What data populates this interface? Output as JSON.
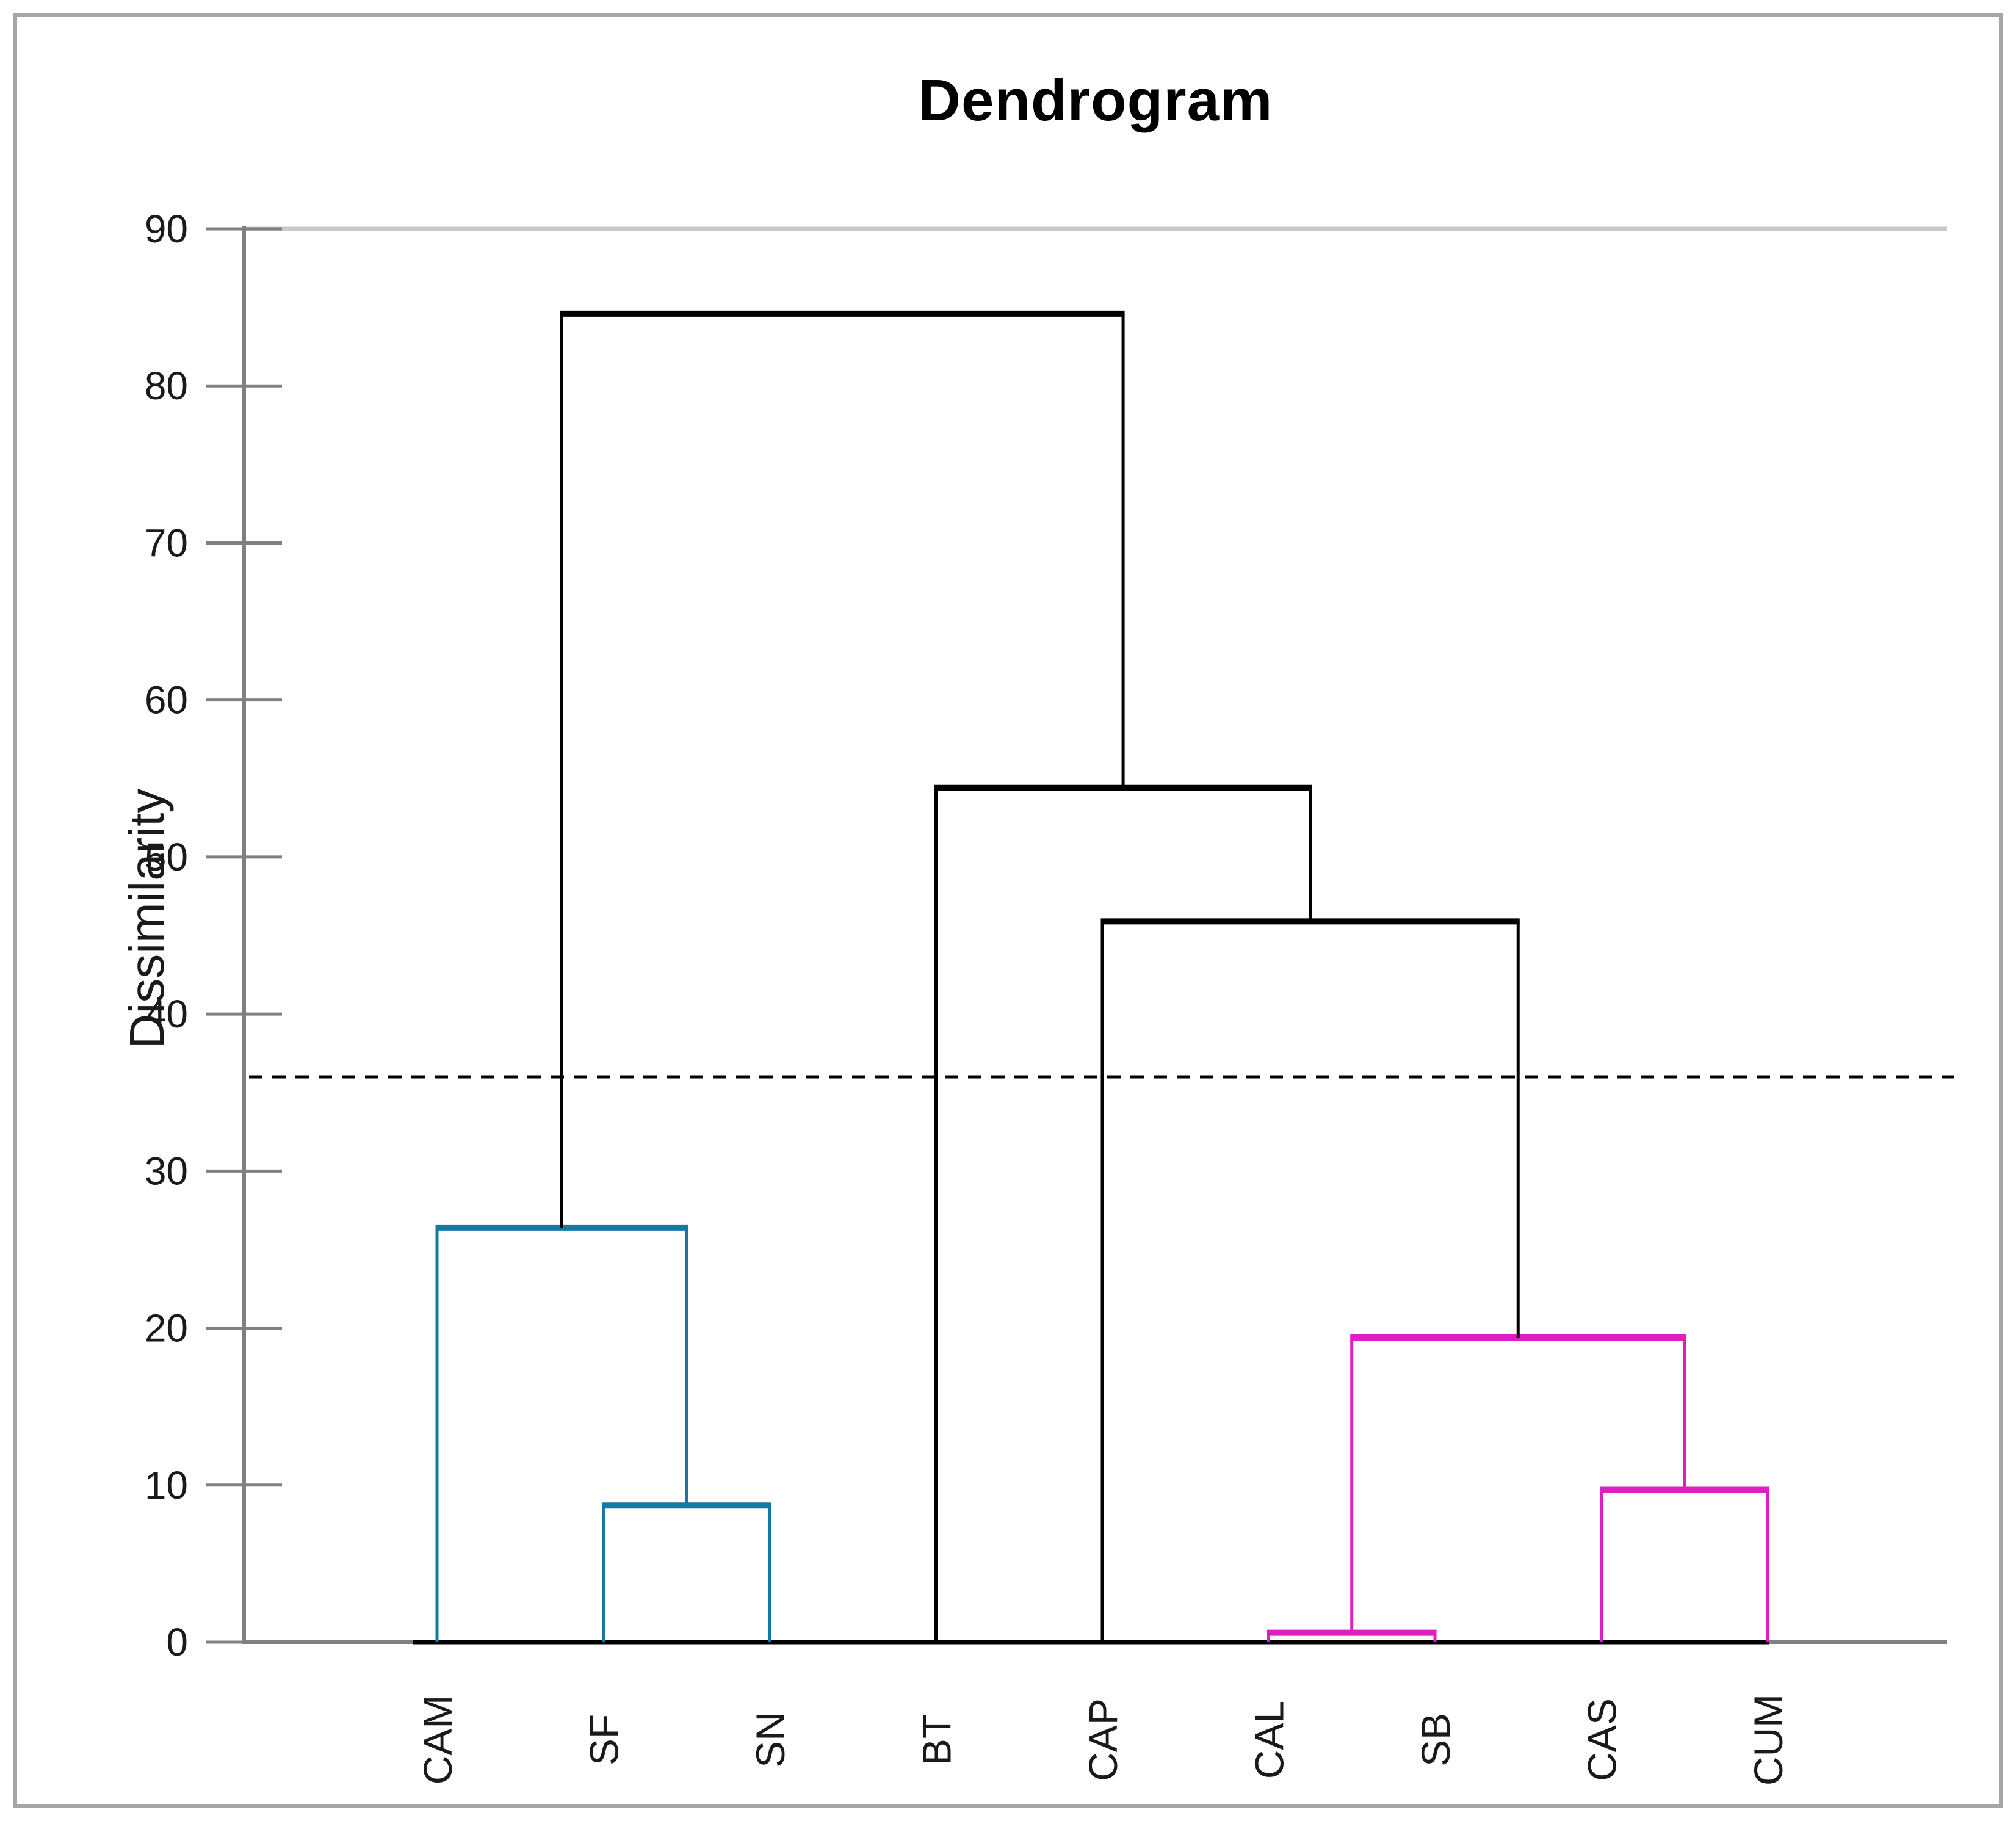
{
  "figure": {
    "title": "Dendrogram",
    "y_axis_label": "Dissimilarity"
  },
  "chart_data": {
    "type": "dendrogram",
    "title": "Dendrogram",
    "ylabel": "Dissimilarity",
    "ylim": [
      0,
      90
    ],
    "yticks": [
      90,
      80,
      70,
      60,
      50,
      40,
      30,
      20,
      10,
      0
    ],
    "grid": "top-gridline-only",
    "leaves": [
      "CAM",
      "SF",
      "SN",
      "BT",
      "CAP",
      "CAL",
      "SB",
      "CAS",
      "CUM"
    ],
    "threshold_line": {
      "value": 36,
      "style": "dashed",
      "color": "#000000"
    },
    "colors": {
      "cluster_blue": "#1878A4",
      "cluster_magenta": "#E01EC0",
      "link_black": "#000000",
      "axis_gray": "#808080",
      "gridline_gray": "#c9c9c9",
      "baseline_black": "#000000"
    },
    "merges": [
      {
        "id": "m1",
        "children": [
          "SF",
          "SN"
        ],
        "height": 8.7,
        "color_key": "cluster_blue"
      },
      {
        "id": "m2",
        "children": [
          "CAM",
          "m1"
        ],
        "height": 26.4,
        "color_key": "cluster_blue"
      },
      {
        "id": "m3",
        "children": [
          "CAL",
          "SB"
        ],
        "height": 0.6,
        "color_key": "cluster_magenta"
      },
      {
        "id": "m4",
        "children": [
          "CAS",
          "CUM"
        ],
        "height": 9.7,
        "color_key": "cluster_magenta"
      },
      {
        "id": "m5",
        "children": [
          "m3",
          "m4"
        ],
        "height": 19.4,
        "color_key": "cluster_magenta"
      },
      {
        "id": "m6",
        "children": [
          "CAP",
          "m5"
        ],
        "height": 45.9,
        "color_key": "link_black"
      },
      {
        "id": "m7",
        "children": [
          "BT",
          "m6"
        ],
        "height": 54.4,
        "color_key": "link_black"
      },
      {
        "id": "m8",
        "children": [
          "m2",
          "m7"
        ],
        "height": 84.6,
        "color_key": "link_black"
      }
    ]
  }
}
